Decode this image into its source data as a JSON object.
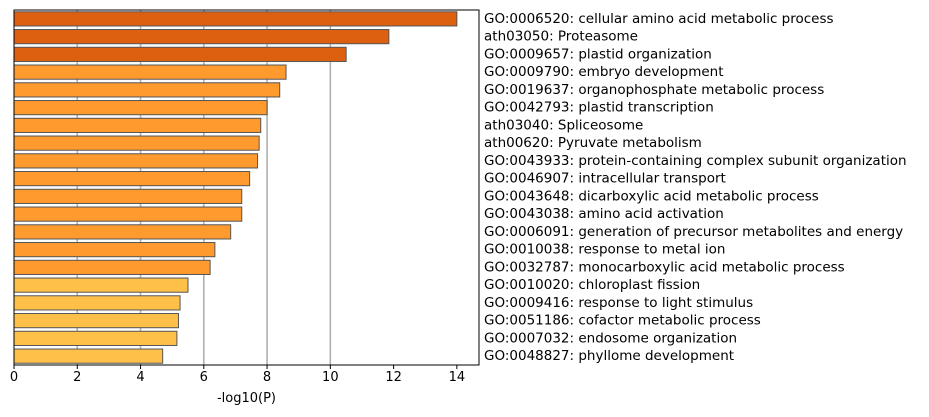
{
  "chart_data": {
    "type": "bar",
    "orientation": "horizontal",
    "categories": [
      "GO:0006520: cellular amino acid metabolic process",
      "ath03050: Proteasome",
      "GO:0009657: plastid organization",
      "GO:0009790: embryo development",
      "GO:0019637: organophosphate metabolic process",
      "GO:0042793: plastid transcription",
      "ath03040: Spliceosome",
      "ath00620: Pyruvate metabolism",
      "GO:0043933: protein-containing complex subunit organization",
      "GO:0046907: intracellular transport",
      "GO:0043648: dicarboxylic acid metabolic process",
      "GO:0043038: amino acid activation",
      "GO:0006091: generation of precursor metabolites and energy",
      "GO:0010038: response to metal ion",
      "GO:0032787: monocarboxylic acid metabolic process",
      "GO:0010020: chloroplast fission",
      "GO:0009416: response to light stimulus",
      "GO:0051186: cofactor metabolic process",
      "GO:0007032: endosome organization",
      "GO:0048827: phyllome development"
    ],
    "values": [
      14.0,
      11.85,
      10.5,
      8.6,
      8.4,
      8.0,
      7.8,
      7.75,
      7.7,
      7.45,
      7.2,
      7.2,
      6.85,
      6.35,
      6.2,
      5.5,
      5.25,
      5.2,
      5.15,
      4.7
    ],
    "colors": [
      "#dd6010",
      "#dd6010",
      "#dd6010",
      "#ff9a2e",
      "#ff9a2e",
      "#ff9a2e",
      "#ff9a2e",
      "#ff9a2e",
      "#ff9a2e",
      "#ff9a2e",
      "#ff9a2e",
      "#ff9a2e",
      "#ff9a2e",
      "#ff9a2e",
      "#ff9a2e",
      "#ffc04a",
      "#ffc04a",
      "#ffc04a",
      "#ffc04a",
      "#ffc04a"
    ],
    "bar_edge_color": "#555555",
    "xlabel": "-log10(P)",
    "ylabel": "",
    "xlim": [
      0,
      14.7
    ],
    "xticks": [
      0,
      2,
      4,
      6,
      8,
      10,
      12,
      14
    ],
    "grid": true,
    "gridline_values": [
      2,
      4,
      6,
      8,
      10
    ],
    "gridline_color": "#b0b0b0",
    "labels_position": "right"
  }
}
